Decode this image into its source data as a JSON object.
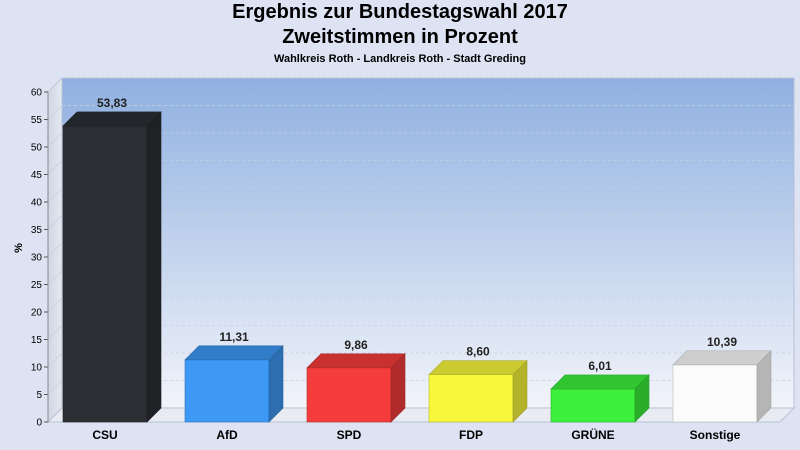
{
  "chart_data": {
    "type": "bar",
    "title": "Ergebnis zur Bundestagswahl 2017",
    "title_line2": "Zweitstimmen in Prozent",
    "subtitle": "Wahlkreis Roth - Landkreis Roth - Stadt Greding",
    "ylabel": "%",
    "xlabel": "",
    "ylim": [
      0,
      60
    ],
    "yticks": [
      0,
      5,
      10,
      15,
      20,
      25,
      30,
      35,
      40,
      45,
      50,
      55,
      60
    ],
    "grid": true,
    "categories": [
      "CSU",
      "AfD",
      "SPD",
      "FDP",
      "GRÜNE",
      "Sonstige"
    ],
    "values": [
      53.83,
      11.31,
      9.86,
      8.6,
      6.01,
      10.39
    ],
    "value_labels": [
      "53,83",
      "11,31",
      "9,86",
      "8,60",
      "6,01",
      "10,39"
    ],
    "colors": [
      "#2b2e33",
      "#3d99f5",
      "#f53c3c",
      "#f7f73c",
      "#3cf03c",
      "#fbfbfb"
    ]
  }
}
